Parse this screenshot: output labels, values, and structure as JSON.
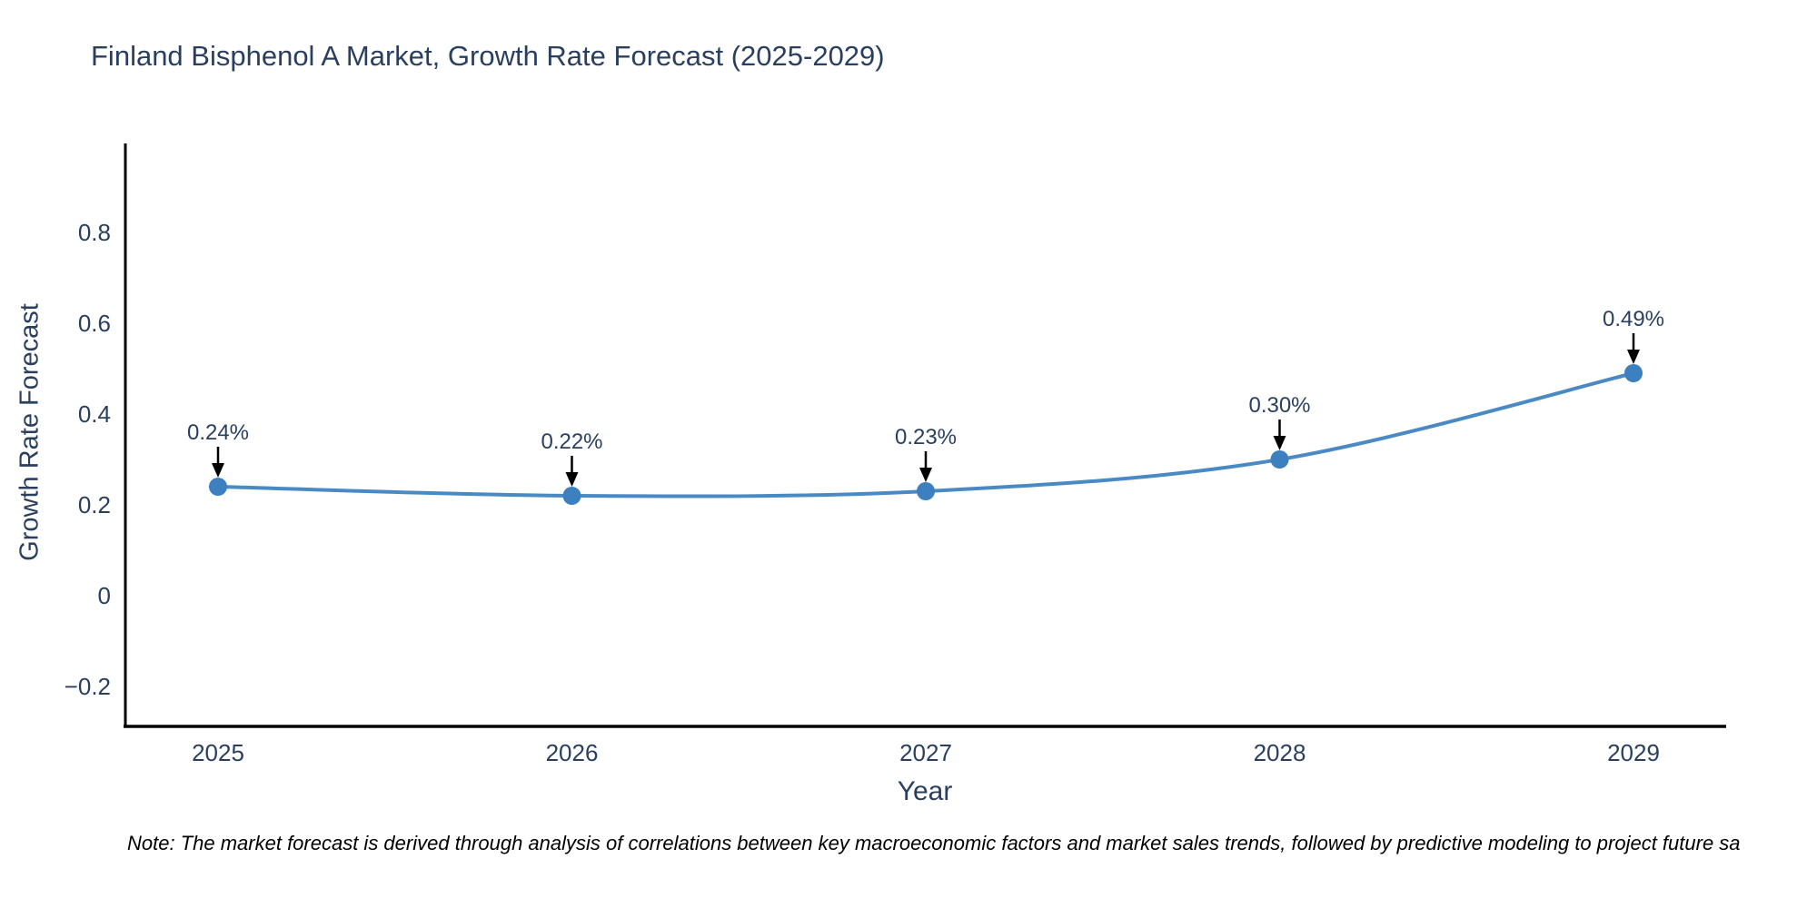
{
  "title": "Finland Bisphenol A Market, Growth Rate Forecast (2025-2029)",
  "note": "Note: The market forecast is derived through analysis of correlations between key macroeconomic factors and market sales trends, followed by predictive modeling to project future sa",
  "chart_data": {
    "type": "line",
    "title": "Finland Bisphenol A Market, Growth Rate Forecast (2025-2029)",
    "xlabel": "Year",
    "ylabel": "Growth Rate Forecast",
    "categories": [
      "2025",
      "2026",
      "2027",
      "2028",
      "2029"
    ],
    "x": [
      2025,
      2026,
      2027,
      2028,
      2029
    ],
    "series": [
      {
        "name": "Growth Rate Forecast",
        "values": [
          0.24,
          0.22,
          0.23,
          0.3,
          0.49
        ]
      }
    ],
    "annotations": [
      "0.24%",
      "0.22%",
      "0.23%",
      "0.30%",
      "0.49%"
    ],
    "ytick_values": [
      0.8,
      0.6,
      0.4,
      0.2,
      0,
      -0.2
    ],
    "ytick_labels": [
      "0.8",
      "0.6",
      "0.4",
      "0.2",
      "0",
      "−0.2"
    ],
    "xtick_labels": [
      "2025",
      "2026",
      "2027",
      "2028",
      "2029"
    ],
    "ylim": [
      -0.29,
      1.0
    ],
    "xlim": [
      2024.74,
      2029.26
    ],
    "grid": false,
    "legend": "none",
    "line_shape": "spline",
    "marker": "circle",
    "colors": {
      "line": "#4a8ac4",
      "marker": "#3c80c0",
      "axis": "#000000",
      "text": "#2a3f5f",
      "arrow": "#000000",
      "background": "#ffffff"
    }
  }
}
